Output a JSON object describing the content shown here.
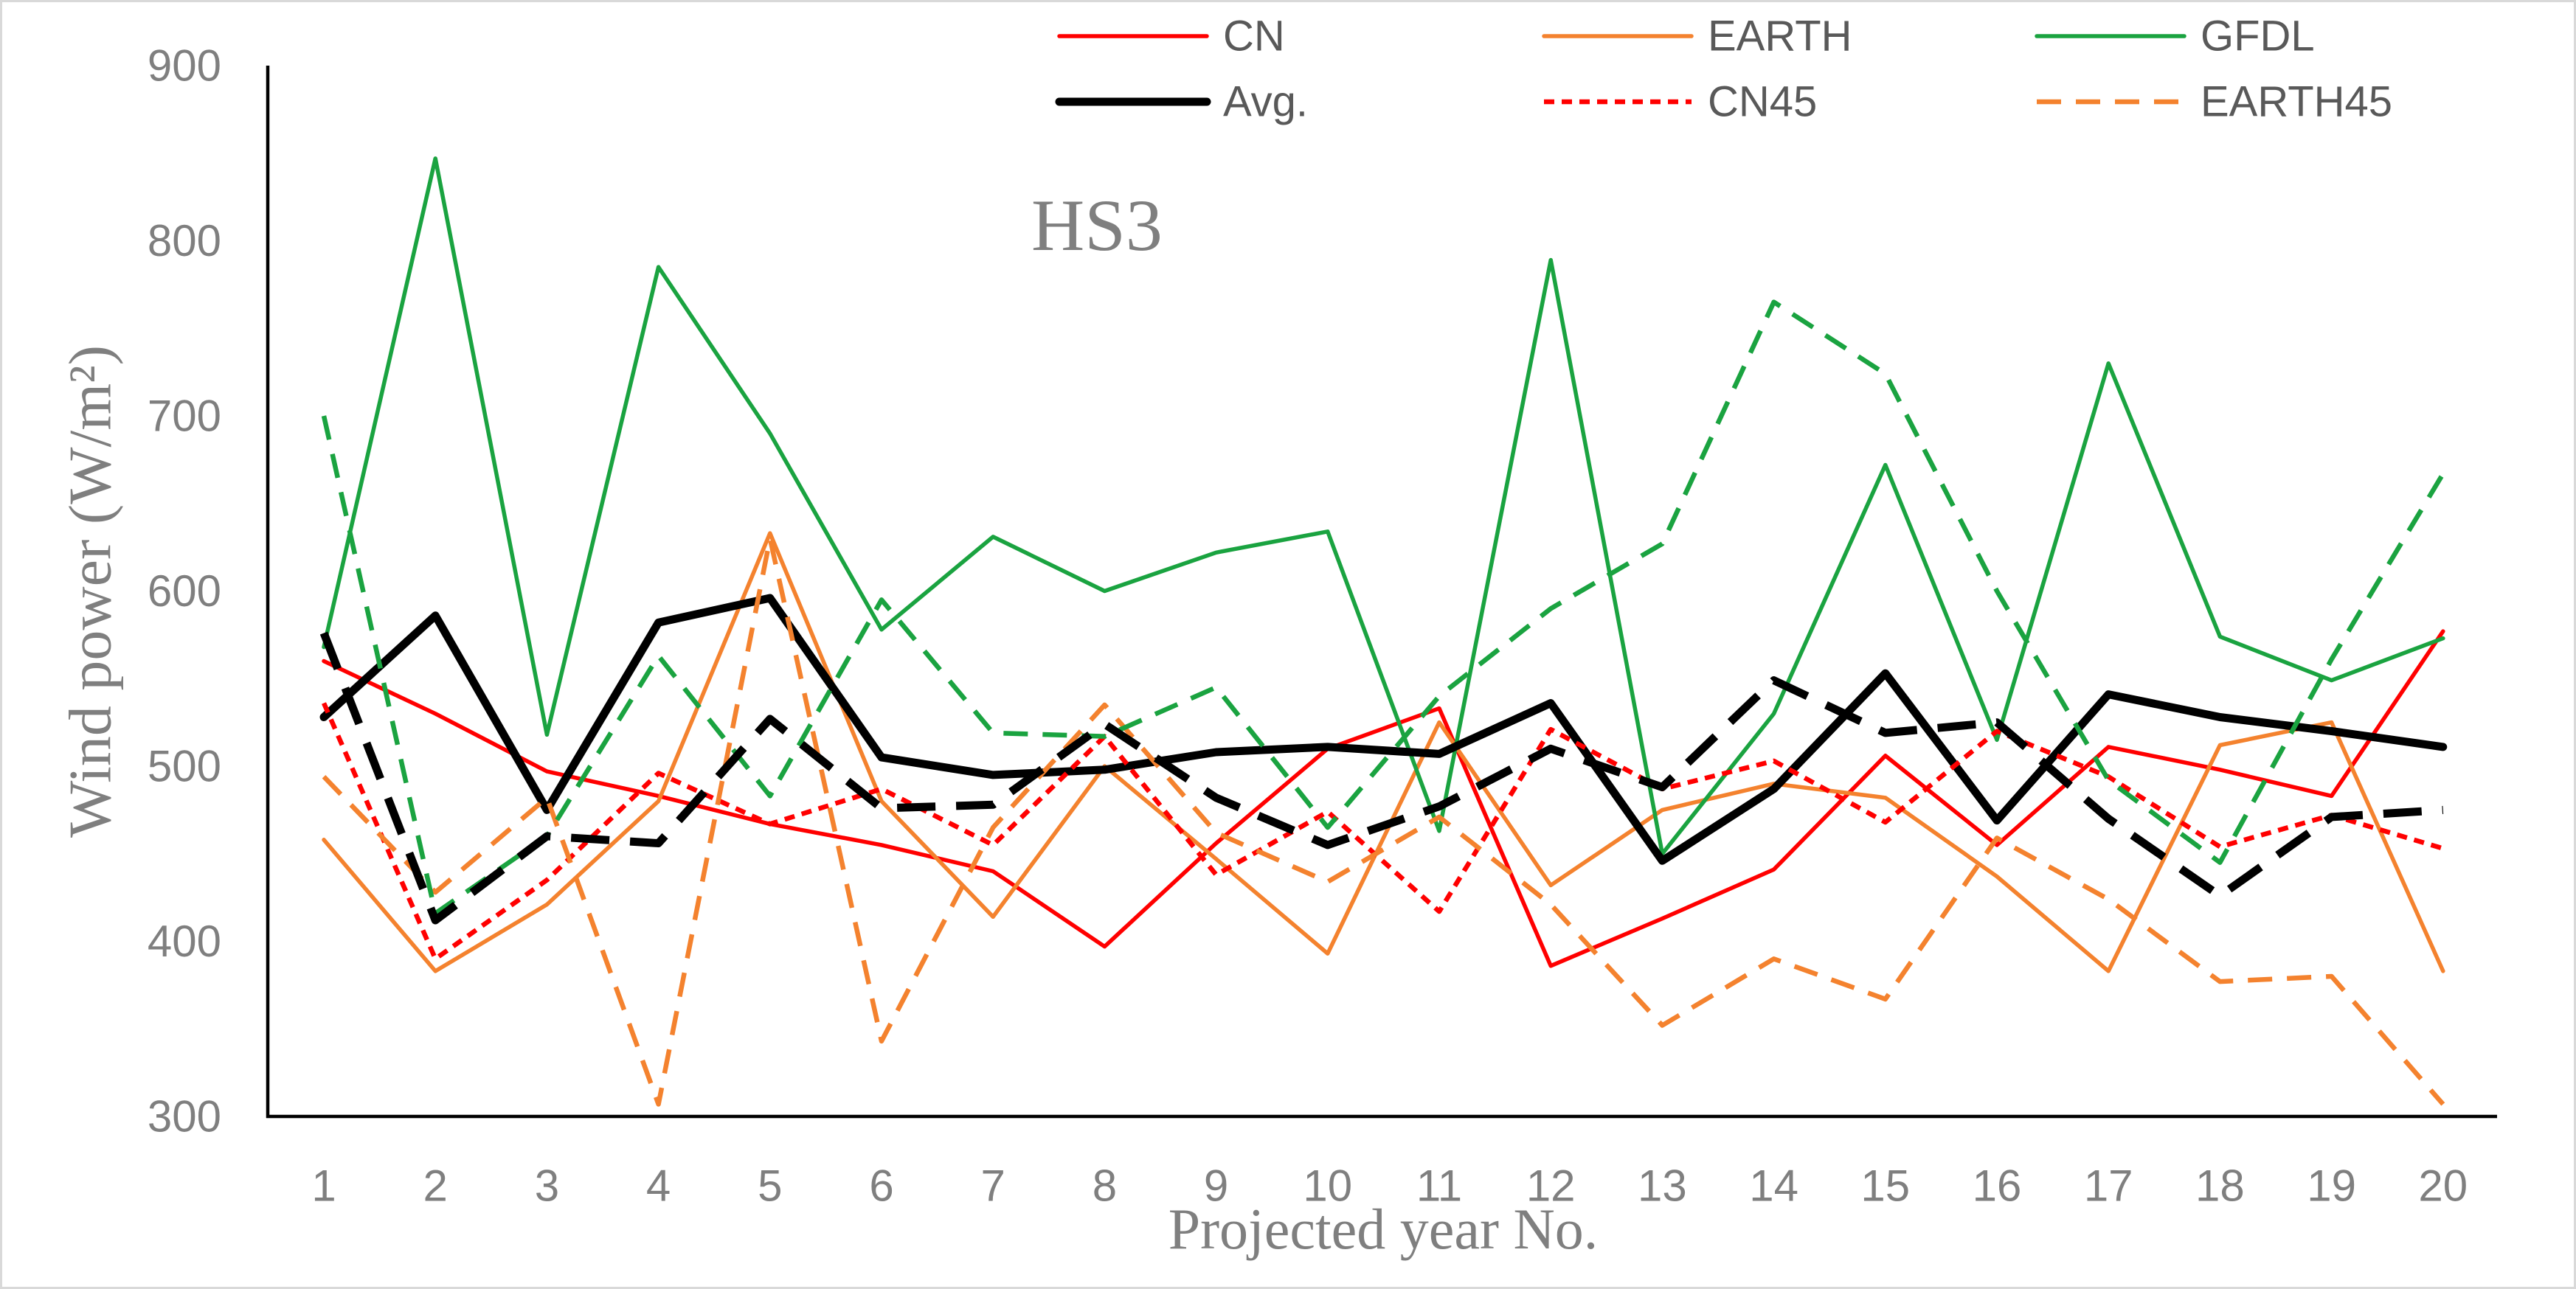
{
  "chart_data": {
    "type": "line",
    "title": "HS3",
    "xlabel": "Projected year No.",
    "ylabel": "Wind power (W/m²)",
    "categories": [
      1,
      2,
      3,
      4,
      5,
      6,
      7,
      8,
      9,
      10,
      11,
      12,
      13,
      14,
      15,
      16,
      17,
      18,
      19,
      20
    ],
    "ylim": [
      300,
      900
    ],
    "y_ticks": [
      300,
      400,
      500,
      600,
      700,
      800,
      900
    ],
    "grid": false,
    "series": [
      {
        "name": "CN",
        "color": "#ff0000",
        "values": [
          560,
          530,
          497,
          483,
          467,
          455,
          440,
          397,
          456,
          510,
          533,
          386,
          413,
          441,
          506,
          455,
          511,
          498,
          483,
          577
        ]
      },
      {
        "name": "EARTH",
        "color": "#f4822e",
        "values": [
          458,
          383,
          421,
          480,
          633,
          480,
          414,
          500,
          447,
          393,
          525,
          432,
          475,
          490,
          482,
          437,
          383,
          512,
          525,
          383
        ]
      },
      {
        "name": "GFDL",
        "color": "#1aa340",
        "values": [
          568,
          847,
          518,
          785,
          690,
          578,
          631,
          600,
          622,
          634,
          463,
          789,
          450,
          530,
          672,
          515,
          730,
          574,
          549,
          573
        ]
      },
      {
        "name": "Avg.",
        "color": "#000000",
        "values": [
          528,
          586,
          475,
          582,
          596,
          505,
          495,
          498,
          508,
          511,
          507,
          536,
          446,
          487,
          553,
          469,
          541,
          528,
          520,
          511
        ]
      },
      {
        "name": "CN45",
        "color": "#ff0000",
        "values": [
          536,
          390,
          435,
          496,
          467,
          487,
          455,
          517,
          438,
          474,
          417,
          521,
          487,
          503,
          468,
          520,
          494,
          454,
          472,
          453
        ]
      },
      {
        "name": "EARTH45",
        "color": "#f4822e",
        "values": [
          494,
          428,
          482,
          307,
          630,
          343,
          465,
          535,
          462,
          434,
          471,
          421,
          352,
          390,
          367,
          459,
          424,
          377,
          380,
          307
        ]
      },
      {
        "color": "#1aa340",
        "values": [
          700,
          416,
          460,
          563,
          483,
          595,
          519,
          517,
          545,
          465,
          540,
          590,
          627,
          765,
          724,
          600,
          492,
          445,
          561,
          667
        ]
      },
      {
        "color": "#000000",
        "values": [
          576,
          412,
          460,
          456,
          527,
          476,
          478,
          524,
          482,
          455,
          477,
          510,
          488,
          549,
          519,
          525,
          470,
          426,
          471,
          475
        ]
      }
    ]
  }
}
